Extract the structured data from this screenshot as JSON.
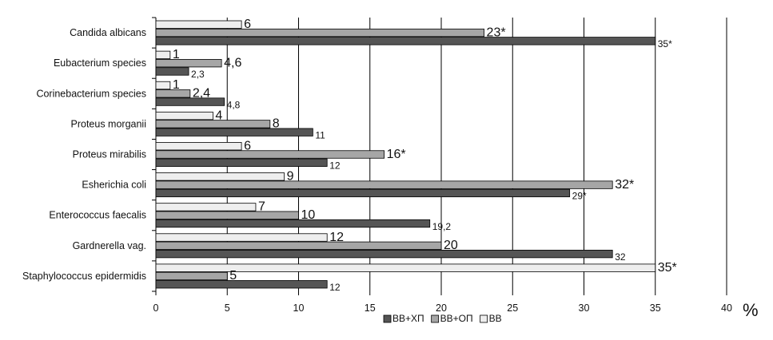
{
  "chart_data": {
    "type": "bar",
    "orientation": "horizontal",
    "title": "",
    "xlabel": "",
    "ylabel": "",
    "unit": "%",
    "xlim": [
      0,
      40
    ],
    "x_ticks": [
      "0",
      "5",
      "10",
      "15",
      "20",
      "25",
      "30",
      "35",
      "40"
    ],
    "grid": "vertical",
    "legend_position": "bottom",
    "categories": [
      "Candida albicans",
      "Eubacterium species",
      "Corinebacterium species",
      "Proteus morganii",
      "Proteus mirabilis",
      "Esherichia coli",
      "Enterococcus faecalis",
      "Gardnerella vag.",
      "Staphylococcus epidermidis"
    ],
    "series": [
      {
        "name": "ВВ",
        "color": "#eeeeee",
        "values": [
          6,
          1,
          1,
          4,
          6,
          9,
          7,
          12,
          35
        ],
        "labels": [
          "6",
          "1",
          "1",
          "4",
          "6",
          "9",
          "7",
          "12",
          "35*"
        ]
      },
      {
        "name": "ВВ+ОП",
        "color": "#a6a6a6",
        "values": [
          23,
          4.6,
          2.4,
          8,
          16,
          32,
          10,
          20,
          5
        ],
        "labels": [
          "23*",
          "4,6",
          "2,4",
          "8",
          "16*",
          "32*",
          "10",
          "20",
          "5"
        ]
      },
      {
        "name": "ВВ+ХП",
        "color": "#555555",
        "values": [
          35,
          2.3,
          4.8,
          11,
          12,
          29,
          19.2,
          32,
          12
        ],
        "labels": [
          "35*",
          "2,3",
          "4,8",
          "11",
          "12",
          "29*",
          "19,2",
          "32",
          "12"
        ]
      }
    ],
    "legend_order": [
      "ВВ+ХП",
      "ВВ+ОП",
      "ВВ"
    ]
  }
}
